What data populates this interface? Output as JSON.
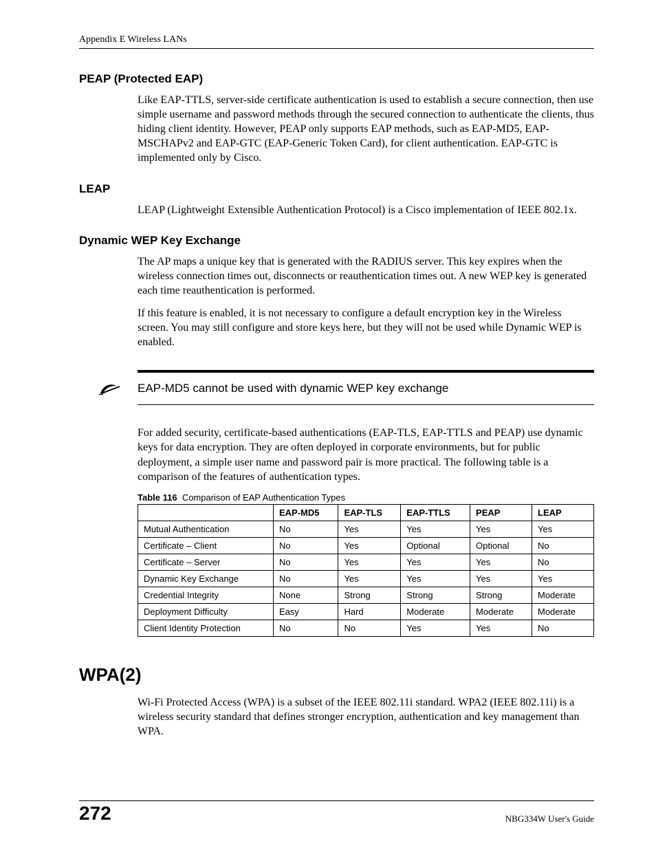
{
  "header": {
    "text": "Appendix E Wireless LANs"
  },
  "sections": {
    "peap": {
      "title": "PEAP (Protected EAP)",
      "para": "Like EAP-TTLS, server-side certificate authentication is used to establish a secure connection, then use simple username and password methods through the secured connection to authenticate the clients, thus hiding client identity. However, PEAP only supports EAP methods, such as EAP-MD5, EAP-MSCHAPv2 and EAP-GTC (EAP-Generic Token Card), for client authentication. EAP-GTC is implemented only by Cisco."
    },
    "leap": {
      "title": "LEAP",
      "para": "LEAP (Lightweight Extensible Authentication Protocol) is a Cisco implementation of IEEE 802.1x."
    },
    "dwep": {
      "title": "Dynamic WEP Key Exchange",
      "para1": "The AP maps a unique key that is generated with the RADIUS server. This key expires when the wireless connection times out, disconnects or reauthentication times out. A new WEP key is generated each time reauthentication is performed.",
      "para2": "If this feature is enabled, it is not necessary to configure a default encryption key in the Wireless screen. You may still configure and store keys here, but they will not be used while Dynamic WEP is enabled."
    },
    "note": {
      "text": "EAP-MD5 cannot be used with dynamic WEP key exchange"
    },
    "post_note": {
      "para": "For added security, certificate-based authentications (EAP-TLS, EAP-TTLS and PEAP) use dynamic keys for data encryption. They are often deployed in corporate environments, but for public deployment, a simple user name and password pair is more practical. The following table is a comparison of the features of authentication types."
    },
    "wpa2": {
      "title": "WPA(2)",
      "para": "Wi-Fi Protected Access (WPA) is a subset of the IEEE 802.11i standard. WPA2 (IEEE 802.11i) is a wireless security standard that defines stronger encryption, authentication and key management than WPA."
    }
  },
  "table": {
    "caption_label": "Table 116",
    "caption_text": "Comparison of EAP Authentication Types",
    "columns": [
      "",
      "EAP-MD5",
      "EAP-TLS",
      "EAP-TTLS",
      "PEAP",
      "LEAP"
    ],
    "rows": [
      [
        "Mutual Authentication",
        "No",
        "Yes",
        "Yes",
        "Yes",
        "Yes"
      ],
      [
        "Certificate – Client",
        "No",
        "Yes",
        "Optional",
        "Optional",
        "No"
      ],
      [
        "Certificate – Server",
        "No",
        "Yes",
        "Yes",
        "Yes",
        "No"
      ],
      [
        "Dynamic Key Exchange",
        "No",
        "Yes",
        "Yes",
        "Yes",
        "Yes"
      ],
      [
        "Credential Integrity",
        "None",
        "Strong",
        "Strong",
        "Strong",
        "Moderate"
      ],
      [
        "Deployment Difficulty",
        "Easy",
        "Hard",
        "Moderate",
        "Moderate",
        "Moderate"
      ],
      [
        "Client Identity Protection",
        "No",
        "No",
        "Yes",
        "Yes",
        "No"
      ]
    ],
    "header_fontsize": 13,
    "cell_fontsize": 13,
    "border_color": "#000000"
  },
  "footer": {
    "page": "272",
    "guide": "NBG334W User's Guide"
  },
  "colors": {
    "text": "#000000",
    "background": "#ffffff",
    "rule": "#000000"
  }
}
